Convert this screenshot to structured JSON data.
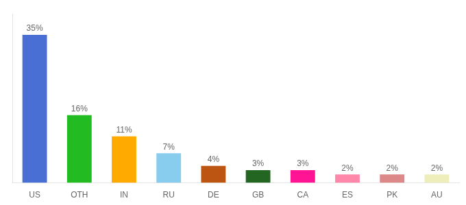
{
  "chart_data": {
    "type": "bar",
    "categories": [
      "US",
      "OTH",
      "IN",
      "RU",
      "DE",
      "GB",
      "CA",
      "ES",
      "PK",
      "AU"
    ],
    "values": [
      35,
      16,
      11,
      7,
      4,
      3,
      3,
      2,
      2,
      2
    ],
    "value_labels": [
      "35%",
      "16%",
      "11%",
      "7%",
      "4%",
      "3%",
      "3%",
      "2%",
      "2%",
      "2%"
    ],
    "colors": [
      "#4a6fd4",
      "#22bb22",
      "#ffaa00",
      "#88ccee",
      "#bb5511",
      "#226622",
      "#ff1493",
      "#ff88aa",
      "#dd8888",
      "#eeeebb"
    ],
    "ylim": [
      0,
      40
    ],
    "grid": false,
    "data_labels": true,
    "tick_labels": "x"
  }
}
